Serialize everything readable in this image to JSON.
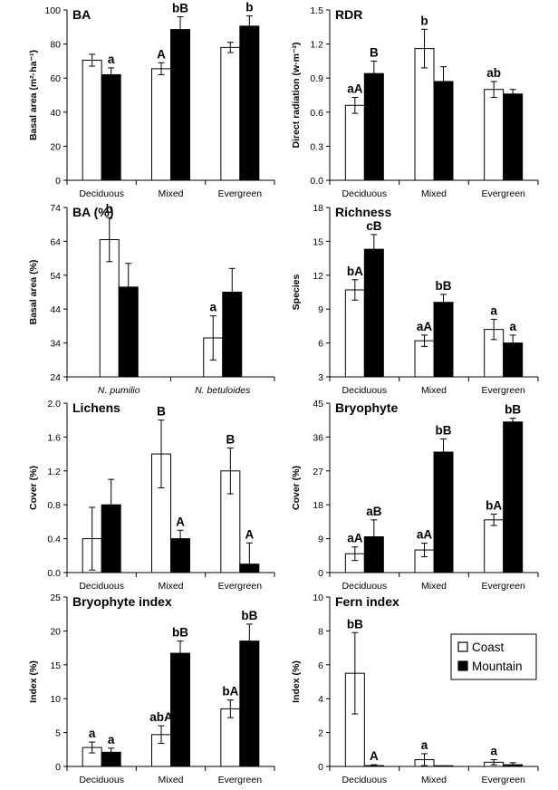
{
  "legend": {
    "coast_label": "Coast",
    "mountain_label": "Mountain",
    "coast_color": "#ffffff",
    "mountain_color": "#000000"
  },
  "chart_data": [
    {
      "type": "bar",
      "title": "BA",
      "ylabel": "Basal area (m²·ha⁻¹)",
      "ylim": [
        0,
        100
      ],
      "yticks": [
        "0",
        "20",
        "40",
        "60",
        "80",
        "100"
      ],
      "categories": [
        "Deciduous",
        "Mixed",
        "Evergreen"
      ],
      "series": [
        {
          "name": "Coast",
          "values": [
            70.5,
            65.5,
            78
          ],
          "errors": [
            3.5,
            3.5,
            3
          ]
        },
        {
          "name": "Mountain",
          "values": [
            62,
            88.5,
            90.5
          ],
          "errors": [
            4,
            7.5,
            6
          ]
        }
      ],
      "labels": [
        {
          "category": 0,
          "series": 1,
          "text": "a"
        },
        {
          "category": 1,
          "series": 0,
          "text": "A"
        },
        {
          "category": 1,
          "series": 1,
          "text": "bB"
        },
        {
          "category": 2,
          "series": 1,
          "text": "b"
        }
      ]
    },
    {
      "type": "bar",
      "title": "RDR",
      "ylabel": "Direct radiation (w·m⁻²)",
      "ylim": [
        0,
        1.5
      ],
      "yticks": [
        "0.0",
        "0.3",
        "0.6",
        "0.9",
        "1.2",
        "1.5"
      ],
      "categories": [
        "Deciduous",
        "Mixed",
        "Evergreen"
      ],
      "series": [
        {
          "name": "Coast",
          "values": [
            0.66,
            1.16,
            0.8
          ],
          "errors": [
            0.07,
            0.17,
            0.07
          ]
        },
        {
          "name": "Mountain",
          "values": [
            0.94,
            0.87,
            0.76
          ],
          "errors": [
            0.11,
            0.13,
            0.04
          ]
        }
      ],
      "labels": [
        {
          "category": 0,
          "series": 0,
          "text": "aA"
        },
        {
          "category": 0,
          "series": 1,
          "text": "B"
        },
        {
          "category": 1,
          "series": 0,
          "text": "b"
        },
        {
          "category": 2,
          "series": 0,
          "text": "ab"
        }
      ]
    },
    {
      "type": "bar",
      "title": "BA (%)",
      "ylabel": "Basal area (%)",
      "ylim": [
        24,
        74
      ],
      "yticks": [
        "24",
        "34",
        "44",
        "54",
        "64",
        "74"
      ],
      "categories": [
        "N. pumilio",
        "N. betuloides"
      ],
      "categories_italic": true,
      "series": [
        {
          "name": "Coast",
          "values": [
            64.5,
            35.5
          ],
          "errors": [
            6.5,
            6.5
          ]
        },
        {
          "name": "Mountain",
          "values": [
            50.5,
            49
          ],
          "errors": [
            7,
            7
          ]
        }
      ],
      "labels": [
        {
          "category": 0,
          "series": 0,
          "text": "b"
        },
        {
          "category": 1,
          "series": 0,
          "text": "a"
        }
      ]
    },
    {
      "type": "bar",
      "title": "Richness",
      "ylabel": "Species",
      "ylim": [
        3,
        18
      ],
      "yticks": [
        "3",
        "6",
        "9",
        "12",
        "15",
        "18"
      ],
      "categories": [
        "Deciduous",
        "Mixed",
        "Evergreen"
      ],
      "series": [
        {
          "name": "Coast",
          "values": [
            10.7,
            6.2,
            7.2
          ],
          "errors": [
            0.9,
            0.5,
            0.9
          ]
        },
        {
          "name": "Mountain",
          "values": [
            14.3,
            9.6,
            6.0
          ],
          "errors": [
            1.3,
            0.7,
            0.7
          ]
        }
      ],
      "labels": [
        {
          "category": 0,
          "series": 0,
          "text": "bA"
        },
        {
          "category": 0,
          "series": 1,
          "text": "cB"
        },
        {
          "category": 1,
          "series": 0,
          "text": "aA"
        },
        {
          "category": 1,
          "series": 1,
          "text": "bB"
        },
        {
          "category": 2,
          "series": 0,
          "text": "a"
        },
        {
          "category": 2,
          "series": 1,
          "text": "a"
        }
      ]
    },
    {
      "type": "bar",
      "title": "Lichens",
      "ylabel": "Cover (%)",
      "ylim": [
        0,
        2.0
      ],
      "yticks": [
        "0.0",
        "0.4",
        "0.8",
        "1.2",
        "1.6",
        "2.0"
      ],
      "categories": [
        "Deciduous",
        "Mixed",
        "Evergreen"
      ],
      "series": [
        {
          "name": "Coast",
          "values": [
            0.4,
            1.4,
            1.2
          ],
          "errors": [
            0.37,
            0.4,
            0.27
          ]
        },
        {
          "name": "Mountain",
          "values": [
            0.8,
            0.4,
            0.1
          ],
          "errors": [
            0.3,
            0.1,
            0.25
          ]
        }
      ],
      "labels": [
        {
          "category": 1,
          "series": 0,
          "text": "B"
        },
        {
          "category": 1,
          "series": 1,
          "text": "A"
        },
        {
          "category": 2,
          "series": 0,
          "text": "B"
        },
        {
          "category": 2,
          "series": 1,
          "text": "A"
        }
      ]
    },
    {
      "type": "bar",
      "title": "Bryophyte",
      "ylabel": "Cover (%)",
      "ylim": [
        0,
        45
      ],
      "yticks": [
        "0",
        "9",
        "18",
        "27",
        "36",
        "45"
      ],
      "categories": [
        "Deciduous",
        "Mixed",
        "Evergreen"
      ],
      "series": [
        {
          "name": "Coast",
          "values": [
            5,
            6,
            14
          ],
          "errors": [
            1.8,
            1.8,
            1.5
          ]
        },
        {
          "name": "Mountain",
          "values": [
            9.5,
            32,
            40
          ],
          "errors": [
            4.5,
            3.5,
            1
          ]
        }
      ],
      "labels": [
        {
          "category": 0,
          "series": 0,
          "text": "aA"
        },
        {
          "category": 0,
          "series": 1,
          "text": "aB"
        },
        {
          "category": 1,
          "series": 0,
          "text": "aA"
        },
        {
          "category": 1,
          "series": 1,
          "text": "bB"
        },
        {
          "category": 2,
          "series": 0,
          "text": "bA"
        },
        {
          "category": 2,
          "series": 1,
          "text": "bB"
        }
      ]
    },
    {
      "type": "bar",
      "title": "Bryophyte index",
      "ylabel": "Index (%)",
      "ylim": [
        0,
        25
      ],
      "yticks": [
        "0",
        "5",
        "10",
        "15",
        "20",
        "25"
      ],
      "categories": [
        "Deciduous",
        "Mixed",
        "Evergreen"
      ],
      "series": [
        {
          "name": "Coast",
          "values": [
            2.8,
            4.7,
            8.5
          ],
          "errors": [
            0.8,
            1.3,
            1.3
          ]
        },
        {
          "name": "Mountain",
          "values": [
            2.1,
            16.7,
            18.5
          ],
          "errors": [
            0.6,
            1.8,
            2.5
          ]
        }
      ],
      "labels": [
        {
          "category": 0,
          "series": 0,
          "text": "a"
        },
        {
          "category": 0,
          "series": 1,
          "text": "a"
        },
        {
          "category": 1,
          "series": 0,
          "text": "abA"
        },
        {
          "category": 1,
          "series": 1,
          "text": "bB"
        },
        {
          "category": 2,
          "series": 0,
          "text": "bA"
        },
        {
          "category": 2,
          "series": 1,
          "text": "bB"
        }
      ]
    },
    {
      "type": "bar",
      "title": "Fern index",
      "ylabel": "Index (%)",
      "ylim": [
        0,
        10
      ],
      "yticks": [
        "0",
        "2",
        "4",
        "6",
        "8",
        "10"
      ],
      "categories": [
        "Deciduous",
        "Mixed",
        "Evergreen"
      ],
      "series": [
        {
          "name": "Coast",
          "values": [
            5.5,
            0.4,
            0.25
          ],
          "errors": [
            2.4,
            0.35,
            0.15
          ]
        },
        {
          "name": "Mountain",
          "values": [
            0.05,
            0.0,
            0.1
          ],
          "errors": [
            0.05,
            0,
            0.12
          ]
        }
      ],
      "labels": [
        {
          "category": 0,
          "series": 0,
          "text": "bB"
        },
        {
          "category": 0,
          "series": 1,
          "text": "A"
        },
        {
          "category": 1,
          "series": 0,
          "text": "a"
        },
        {
          "category": 2,
          "series": 0,
          "text": "a"
        }
      ]
    }
  ]
}
